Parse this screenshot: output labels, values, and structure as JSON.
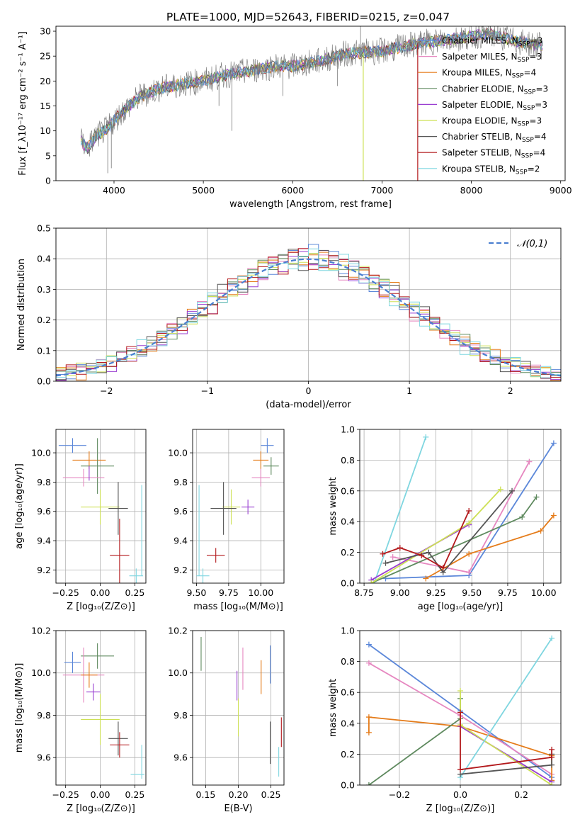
{
  "colors": {
    "chabrier_miles": "#5b87d9",
    "salpeter_miles": "#e687c0",
    "kroupa_miles": "#e57c1a",
    "chabrier_elodie": "#5f8a5f",
    "salpeter_elodie": "#9a3fd1",
    "kroupa_elodie": "#cde055",
    "chabrier_stelib": "#555555",
    "salpeter_stelib": "#b3191c",
    "kroupa_stelib": "#7fd6e0",
    "gauss": "#4a7fd0",
    "data": "#777777"
  },
  "chart_data": [
    {
      "type": "line",
      "title": "PLATE=1000, MJD=52643, FIBERID=0215, z=0.047",
      "xlabel": "wavelength [Angstrom, rest frame]",
      "ylabel": "Flux [f_λ10⁻¹⁷ erg cm⁻² s⁻¹ A⁻¹]",
      "xlim": [
        3350,
        9050
      ],
      "ylim": [
        0,
        31
      ],
      "xticks": [
        4000,
        5000,
        6000,
        7000,
        8000,
        9000
      ],
      "yticks": [
        0,
        5,
        10,
        15,
        20,
        25,
        30
      ],
      "grid": false,
      "legend_position": "right",
      "legend": [
        {
          "key": "chabrier_miles",
          "label": "Chabrier MILES, N",
          "sub": "SSP",
          "tail": "=3"
        },
        {
          "key": "salpeter_miles",
          "label": "Salpeter MILES, N",
          "sub": "SSP",
          "tail": "=3"
        },
        {
          "key": "kroupa_miles",
          "label": "Kroupa MILES, N",
          "sub": "SSP",
          "tail": "=4"
        },
        {
          "key": "chabrier_elodie",
          "label": "Chabrier ELODIE, N",
          "sub": "SSP",
          "tail": "=3"
        },
        {
          "key": "salpeter_elodie",
          "label": "Salpeter ELODIE, N",
          "sub": "SSP",
          "tail": "=3"
        },
        {
          "key": "kroupa_elodie",
          "label": "Kroupa ELODIE, N",
          "sub": "SSP",
          "tail": "=3"
        },
        {
          "key": "chabrier_stelib",
          "label": "Chabrier STELIB, N",
          "sub": "SSP",
          "tail": "=4"
        },
        {
          "key": "salpeter_stelib",
          "label": "Salpeter STELIB, N",
          "sub": "SSP",
          "tail": "=4"
        },
        {
          "key": "kroupa_stelib",
          "label": "Kroupa STELIB, N",
          "sub": "SSP",
          "tail": "=2"
        }
      ],
      "continuum": [
        [
          3630,
          8
        ],
        [
          3700,
          6.5
        ],
        [
          3800,
          9
        ],
        [
          3900,
          10
        ],
        [
          4000,
          12
        ],
        [
          4100,
          14
        ],
        [
          4300,
          17
        ],
        [
          4500,
          18.5
        ],
        [
          4800,
          19.5
        ],
        [
          5000,
          20
        ],
        [
          5200,
          21
        ],
        [
          5500,
          22
        ],
        [
          5800,
          23
        ],
        [
          6000,
          23
        ],
        [
          6300,
          24
        ],
        [
          6600,
          25.5
        ],
        [
          7000,
          26
        ],
        [
          7400,
          27.5
        ],
        [
          7800,
          28.5
        ],
        [
          8200,
          29.5
        ],
        [
          8500,
          28
        ],
        [
          8800,
          27
        ]
      ],
      "features": [
        {
          "x": 3930,
          "y": 1.5,
          "series": "data"
        },
        {
          "x": 3970,
          "y": 2.5,
          "series": "data"
        },
        {
          "x": 5175,
          "y": 15,
          "series": "data"
        },
        {
          "x": 5320,
          "y": 10,
          "series": "data"
        },
        {
          "x": 5890,
          "y": 17,
          "series": "data"
        },
        {
          "x": 6500,
          "y": 19,
          "series": "data"
        },
        {
          "x": 6760,
          "y": 31,
          "series": "data"
        },
        {
          "x": 6790,
          "y": 0,
          "series": "kroupa_elodie"
        },
        {
          "x": 7400,
          "y": 0,
          "series": "salpeter_stelib"
        }
      ]
    },
    {
      "type": "area",
      "xlabel": "(data-model)/error",
      "ylabel": "Normed distribution",
      "xlim": [
        -2.5,
        2.5
      ],
      "ylim": [
        0,
        0.5
      ],
      "xticks": [
        -2,
        -1,
        0,
        1,
        2
      ],
      "yticks": [
        0.0,
        0.1,
        0.2,
        0.3,
        0.4,
        0.5
      ],
      "grid": true,
      "legend_position": "upper right",
      "gauss_label": "𝒩(0,1)",
      "bin_width": 0.1,
      "series": [
        {
          "key": "chabrier_miles",
          "noise": [
            0.01,
            -0.02,
            0.015,
            0.02,
            -0.01,
            0.03,
            -0.01,
            0.02,
            -0.015,
            0.01
          ]
        },
        {
          "key": "salpeter_miles",
          "noise": [
            -0.02,
            0.03,
            0.01,
            -0.01,
            0.025,
            -0.02,
            0.015,
            0.01,
            -0.03,
            0.02
          ]
        },
        {
          "key": "kroupa_miles",
          "noise": [
            0.02,
            0.01,
            -0.02,
            0.03,
            -0.01,
            0.01,
            0.02,
            -0.02,
            0.01,
            -0.01
          ]
        },
        {
          "key": "chabrier_elodie",
          "noise": [
            0.03,
            -0.01,
            0.02,
            -0.02,
            0.01,
            0.02,
            -0.015,
            0.03,
            -0.01,
            0.015
          ]
        },
        {
          "key": "salpeter_elodie",
          "noise": [
            -0.01,
            0.02,
            -0.015,
            0.01,
            0.03,
            -0.02,
            0.02,
            -0.01,
            0.025,
            -0.02
          ]
        },
        {
          "key": "kroupa_elodie",
          "noise": [
            0.025,
            -0.015,
            0.03,
            -0.01,
            -0.02,
            0.02,
            0.01,
            -0.025,
            0.015,
            0.01
          ]
        },
        {
          "key": "chabrier_stelib",
          "noise": [
            -0.015,
            0.01,
            0.02,
            0.025,
            -0.02,
            -0.01,
            0.03,
            0.01,
            -0.02,
            0.02
          ]
        },
        {
          "key": "salpeter_stelib",
          "noise": [
            0.015,
            0.025,
            -0.02,
            0.01,
            0.02,
            -0.03,
            -0.01,
            0.02,
            0.01,
            -0.015
          ]
        },
        {
          "key": "kroupa_stelib",
          "noise": [
            -0.03,
            0.015,
            0.01,
            -0.02,
            0.015,
            0.025,
            -0.02,
            -0.01,
            0.03,
            0.01
          ]
        }
      ]
    },
    {
      "type": "scatter",
      "xlabel": "Z [log₁₀(Z/Z⊙)]",
      "ylabel": "age  [log₁₀(age/yr)]",
      "xlim": [
        -0.32,
        0.33
      ],
      "ylim": [
        9.11,
        10.16
      ],
      "xticks": [
        -0.25,
        0.0,
        0.25
      ],
      "yticks": [
        9.2,
        9.4,
        9.6,
        9.8,
        10.0
      ],
      "grid": true,
      "points": [
        {
          "key": "chabrier_miles",
          "x": -0.2,
          "y": 10.05,
          "xerr": 0.1,
          "yerr": 0.05
        },
        {
          "key": "kroupa_miles",
          "x": -0.08,
          "y": 9.95,
          "xerr": 0.12,
          "yerr": 0.06
        },
        {
          "key": "chabrier_elodie",
          "x": -0.02,
          "y": 9.91,
          "xerr": 0.12,
          "yerr": 0.19
        },
        {
          "key": "salpeter_miles",
          "x": -0.12,
          "y": 9.83,
          "xerr": 0.15,
          "yerr": 0.06
        },
        {
          "key": "salpeter_elodie",
          "x": -0.08,
          "y": 9.86,
          "xerr": 0.0,
          "yerr": 0.05
        },
        {
          "key": "kroupa_elodie",
          "x": 0.0,
          "y": 9.63,
          "xerr": 0.14,
          "yerr": 0.12
        },
        {
          "key": "chabrier_stelib",
          "x": 0.13,
          "y": 9.62,
          "xerr": 0.07,
          "yerr": 0.18
        },
        {
          "key": "salpeter_stelib",
          "x": 0.14,
          "y": 9.3,
          "xerr": 0.07,
          "yerr": 0.25
        },
        {
          "key": "kroupa_stelib",
          "x": 0.26,
          "y": 9.16,
          "xerr": 0.05,
          "yerr": 0.05
        },
        {
          "key": "kroupa_stelib",
          "x": 0.3,
          "y": 9.47,
          "xerr": 0.0,
          "yerr": 0.31
        }
      ]
    },
    {
      "type": "scatter",
      "xlabel": "mass [log₁₀(M/M⊙)]",
      "xlim": [
        9.47,
        10.18
      ],
      "ylim": [
        9.11,
        10.16
      ],
      "xticks": [
        9.5,
        9.75,
        10.0
      ],
      "yticks": [
        9.2,
        9.4,
        9.6,
        9.8,
        10.0
      ],
      "grid": true,
      "points": [
        {
          "key": "chabrier_miles",
          "x": 10.05,
          "y": 10.05,
          "xerr": 0.05,
          "yerr": 0.05
        },
        {
          "key": "kroupa_miles",
          "x": 10.0,
          "y": 9.95,
          "xerr": 0.06,
          "yerr": 0.06
        },
        {
          "key": "chabrier_elodie",
          "x": 10.08,
          "y": 9.91,
          "xerr": 0.06,
          "yerr": 0.06
        },
        {
          "key": "salpeter_miles",
          "x": 10.0,
          "y": 9.83,
          "xerr": 0.07,
          "yerr": 0.06
        },
        {
          "key": "salpeter_elodie",
          "x": 9.9,
          "y": 9.63,
          "xerr": 0.05,
          "yerr": 0.05
        },
        {
          "key": "kroupa_elodie",
          "x": 9.77,
          "y": 9.63,
          "xerr": 0.07,
          "yerr": 0.12
        },
        {
          "key": "chabrier_stelib",
          "x": 9.71,
          "y": 9.62,
          "xerr": 0.1,
          "yerr": 0.18
        },
        {
          "key": "salpeter_stelib",
          "x": 9.65,
          "y": 9.3,
          "xerr": 0.07,
          "yerr": 0.05
        },
        {
          "key": "kroupa_stelib",
          "x": 9.55,
          "y": 9.16,
          "xerr": 0.05,
          "yerr": 0.05
        },
        {
          "key": "kroupa_stelib",
          "x": 9.52,
          "y": 9.47,
          "xerr": 0.0,
          "yerr": 0.31
        }
      ]
    },
    {
      "type": "line",
      "xlabel": "age  [log₁₀(age/yr)]",
      "ylabel": "mass weight",
      "xlim": [
        8.72,
        10.12
      ],
      "ylim": [
        0,
        1
      ],
      "xticks": [
        8.75,
        9.0,
        9.25,
        9.5,
        9.75,
        10.0
      ],
      "yticks": [
        0.0,
        0.2,
        0.4,
        0.6,
        0.8,
        1.0
      ],
      "grid": true,
      "series": [
        {
          "key": "kroupa_stelib",
          "x": [
            8.82,
            9.18
          ],
          "y": [
            0.0,
            0.95
          ]
        },
        {
          "key": "chabrier_miles",
          "x": [
            8.9,
            9.48,
            10.07
          ],
          "y": [
            0.03,
            0.05,
            0.91
          ]
        },
        {
          "key": "salpeter_miles",
          "x": [
            8.95,
            9.48,
            9.9
          ],
          "y": [
            0.17,
            0.07,
            0.79
          ]
        },
        {
          "key": "kroupa_miles",
          "x": [
            9.18,
            9.48,
            9.98,
            10.07
          ],
          "y": [
            0.03,
            0.19,
            0.34,
            0.44
          ]
        },
        {
          "key": "chabrier_elodie",
          "x": [
            8.8,
            9.85,
            9.95
          ],
          "y": [
            0.0,
            0.43,
            0.56
          ]
        },
        {
          "key": "salpeter_elodie",
          "x": [
            8.8,
            9.48
          ],
          "y": [
            0.02,
            0.38
          ]
        },
        {
          "key": "kroupa_elodie",
          "x": [
            8.8,
            9.48,
            9.7
          ],
          "y": [
            0.0,
            0.39,
            0.61
          ]
        },
        {
          "key": "chabrier_stelib",
          "x": [
            8.9,
            9.2,
            9.3,
            9.78
          ],
          "y": [
            0.13,
            0.2,
            0.07,
            0.6
          ]
        },
        {
          "key": "salpeter_stelib",
          "x": [
            8.88,
            9.0,
            9.15,
            9.3,
            9.48
          ],
          "y": [
            0.19,
            0.23,
            0.18,
            0.1,
            0.47
          ]
        }
      ]
    },
    {
      "type": "scatter",
      "xlabel": "Z [log₁₀(Z/Z⊙)]",
      "ylabel": "mass [log₁₀(M/M⊙)]",
      "xlim": [
        -0.32,
        0.33
      ],
      "ylim": [
        9.47,
        10.2
      ],
      "xticks": [
        -0.25,
        0.0,
        0.25
      ],
      "yticks": [
        9.6,
        9.8,
        10.0,
        10.2
      ],
      "grid": true,
      "points": [
        {
          "key": "chabrier_miles",
          "x": -0.2,
          "y": 10.05,
          "xerr": 0.06,
          "yerr": 0.05
        },
        {
          "key": "chabrier_elodie",
          "x": -0.02,
          "y": 10.08,
          "xerr": 0.12,
          "yerr": 0.06
        },
        {
          "key": "salpeter_miles",
          "x": -0.12,
          "y": 9.99,
          "xerr": 0.15,
          "yerr": 0.13
        },
        {
          "key": "kroupa_miles",
          "x": -0.08,
          "y": 9.99,
          "xerr": 0.06,
          "yerr": 0.06
        },
        {
          "key": "salpeter_elodie",
          "x": -0.05,
          "y": 9.91,
          "xerr": 0.05,
          "yerr": 0.04
        },
        {
          "key": "kroupa_elodie",
          "x": 0.0,
          "y": 9.78,
          "xerr": 0.14,
          "yerr": 0.12
        },
        {
          "key": "chabrier_stelib",
          "x": 0.13,
          "y": 9.69,
          "xerr": 0.07,
          "yerr": 0.08
        },
        {
          "key": "salpeter_stelib",
          "x": 0.14,
          "y": 9.66,
          "xerr": 0.07,
          "yerr": 0.06
        },
        {
          "key": "kroupa_stelib",
          "x": 0.27,
          "y": 9.52,
          "xerr": 0.05,
          "yerr": 0.0
        },
        {
          "key": "kroupa_stelib",
          "x": 0.3,
          "y": 9.58,
          "xerr": 0.0,
          "yerr": 0.08
        }
      ]
    },
    {
      "type": "scatter",
      "xlabel": "E(B-V)",
      "xlim": [
        0.13,
        0.27
      ],
      "ylim": [
        9.47,
        10.2
      ],
      "xticks": [
        0.15,
        0.2,
        0.25
      ],
      "yticks": [
        9.6,
        9.8,
        10.0,
        10.2
      ],
      "grid": true,
      "points": [
        {
          "key": "chabrier_elodie",
          "x": 0.143,
          "y": 10.09,
          "xerr": 0.0,
          "yerr": 0.08
        },
        {
          "key": "salpeter_elodie",
          "x": 0.198,
          "y": 9.94,
          "xerr": 0.0,
          "yerr": 0.07
        },
        {
          "key": "kroupa_elodie",
          "x": 0.2,
          "y": 9.79,
          "xerr": 0.0,
          "yerr": 0.09
        },
        {
          "key": "salpeter_miles",
          "x": 0.207,
          "y": 10.02,
          "xerr": 0.0,
          "yerr": 0.1
        },
        {
          "key": "kroupa_miles",
          "x": 0.235,
          "y": 9.98,
          "xerr": 0.0,
          "yerr": 0.08
        },
        {
          "key": "chabrier_miles",
          "x": 0.249,
          "y": 10.04,
          "xerr": 0.0,
          "yerr": 0.09
        },
        {
          "key": "chabrier_stelib",
          "x": 0.249,
          "y": 9.67,
          "xerr": 0.0,
          "yerr": 0.1
        },
        {
          "key": "salpeter_stelib",
          "x": 0.266,
          "y": 9.72,
          "xerr": 0.0,
          "yerr": 0.07
        },
        {
          "key": "kroupa_stelib",
          "x": 0.262,
          "y": 9.58,
          "xerr": 0.0,
          "yerr": 0.07
        }
      ]
    },
    {
      "type": "line",
      "xlabel": "Z [log₁₀(Z/Z⊙)]",
      "ylabel": "mass weight",
      "xlim": [
        -0.33,
        0.33
      ],
      "ylim": [
        0,
        1
      ],
      "xticks": [
        -0.2,
        0.0,
        0.2
      ],
      "yticks": [
        0.0,
        0.2,
        0.4,
        0.6,
        0.8,
        1.0
      ],
      "grid": true,
      "series": [
        {
          "key": "chabrier_miles",
          "x": [
            -0.3,
            0.0,
            0.3
          ],
          "y": [
            0.91,
            0.48,
            0.05
          ]
        },
        {
          "key": "salpeter_miles",
          "x": [
            -0.3,
            0.0,
            0.3
          ],
          "y": [
            0.79,
            0.45,
            0.07
          ]
        },
        {
          "key": "kroupa_miles",
          "x": [
            -0.3,
            -0.3,
            0.0,
            0.3,
            0.3
          ],
          "y": [
            0.34,
            0.44,
            0.38,
            0.19,
            0.03
          ]
        },
        {
          "key": "chabrier_elodie",
          "x": [
            -0.3,
            0.0,
            0.0
          ],
          "y": [
            0.0,
            0.43,
            0.56
          ]
        },
        {
          "key": "salpeter_elodie",
          "x": [
            0.0,
            0.3
          ],
          "y": [
            0.38,
            0.02
          ]
        },
        {
          "key": "kroupa_elodie",
          "x": [
            0.0,
            0.0,
            0.3
          ],
          "y": [
            0.61,
            0.39,
            0.0
          ]
        },
        {
          "key": "kroupa_stelib",
          "x": [
            0.0,
            0.3
          ],
          "y": [
            0.05,
            0.95
          ]
        },
        {
          "key": "chabrier_stelib",
          "x": [
            0.0,
            0.3,
            0.3
          ],
          "y": [
            0.07,
            0.13,
            0.2
          ]
        },
        {
          "key": "salpeter_stelib",
          "x": [
            0.0,
            0.0,
            0.3,
            0.3
          ],
          "y": [
            0.47,
            0.1,
            0.18,
            0.23
          ]
        }
      ]
    }
  ]
}
